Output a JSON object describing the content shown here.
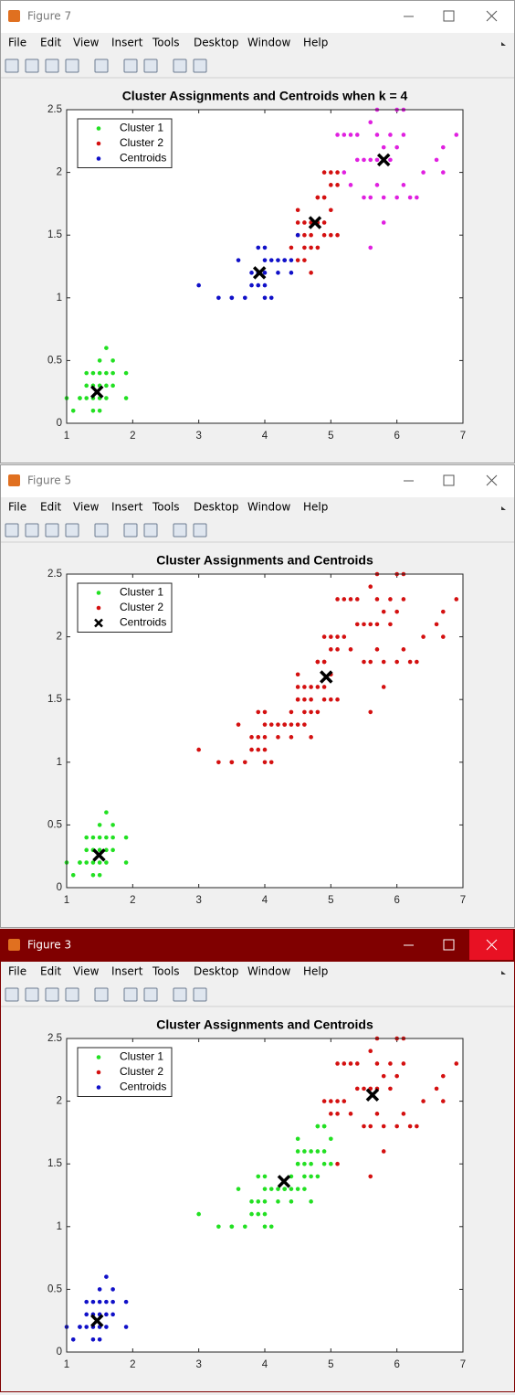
{
  "menu": [
    "File",
    "Edit",
    "View",
    "Insert",
    "Tools",
    "Desktop",
    "Window",
    "Help"
  ],
  "windows": [
    {
      "title": "Figure 7",
      "active": false
    },
    {
      "title": "Figure 5",
      "active": false
    },
    {
      "title": "Figure 3",
      "active": true
    }
  ],
  "chart_data": [
    {
      "type": "scatter",
      "title": "Cluster Assignments and Centroids when k = 4",
      "xlim": [
        1,
        7
      ],
      "ylim": [
        0,
        2.5
      ],
      "xticks": [
        1,
        2,
        3,
        4,
        5,
        6,
        7
      ],
      "yticks": [
        0,
        0.5,
        1,
        1.5,
        2,
        2.5
      ],
      "legend": "northwest",
      "series": [
        {
          "name": "Cluster 1",
          "color": "#22e022",
          "marker": "dot",
          "x": [
            1.0,
            1.1,
            1.2,
            1.3,
            1.3,
            1.3,
            1.4,
            1.4,
            1.4,
            1.5,
            1.5,
            1.5,
            1.5,
            1.6,
            1.6,
            1.6,
            1.7,
            1.7,
            1.7,
            1.9,
            1.9,
            1.2,
            1.5,
            1.6,
            1.4
          ],
          "values": [
            0.2,
            0.1,
            0.2,
            0.2,
            0.3,
            0.4,
            0.1,
            0.2,
            0.3,
            0.1,
            0.2,
            0.3,
            0.4,
            0.2,
            0.4,
            0.6,
            0.3,
            0.4,
            0.5,
            0.2,
            0.4,
            0.2,
            0.5,
            0.3,
            0.4
          ]
        },
        {
          "name": "Cluster 2",
          "color": "#d41010",
          "marker": "dot",
          "x": [
            4.4,
            4.5,
            4.6,
            4.7,
            4.8,
            4.5,
            4.6,
            4.7,
            4.8,
            4.9,
            4.5,
            4.6,
            4.7,
            4.9,
            5.0,
            5.1,
            4.8,
            4.9,
            5.0,
            5.1,
            4.7,
            4.9,
            5.0,
            4.8,
            4.9,
            5.0,
            5.1,
            4.5,
            4.6
          ],
          "values": [
            1.4,
            1.5,
            1.5,
            1.4,
            1.4,
            1.6,
            1.4,
            1.6,
            1.8,
            1.5,
            1.7,
            1.3,
            1.2,
            1.8,
            1.7,
            1.5,
            1.8,
            2.0,
            2.0,
            2.0,
            1.5,
            1.6,
            1.5,
            1.6,
            1.8,
            1.9,
            1.9,
            1.3,
            1.6
          ]
        },
        {
          "name": "Centroids",
          "color": "#1010c8",
          "marker": "dot",
          "x": [
            3.0,
            3.3,
            3.5,
            3.7,
            3.8,
            3.9,
            4.0,
            4.1,
            3.6,
            3.9,
            4.0,
            4.1,
            4.2,
            4.3,
            4.4,
            3.9,
            4.0,
            4.2,
            4.4,
            3.8,
            4.0,
            3.5,
            4.3,
            4.5,
            4.0
          ],
          "values": [
            1.1,
            1.0,
            1.0,
            1.0,
            1.1,
            1.1,
            1.0,
            1.0,
            1.3,
            1.2,
            1.2,
            1.3,
            1.3,
            1.3,
            1.2,
            1.4,
            1.4,
            1.2,
            1.3,
            1.2,
            1.3,
            1.0,
            1.3,
            1.5,
            1.1
          ]
        },
        {
          "color": "#e020e0",
          "marker": "dot",
          "x": [
            5.1,
            5.2,
            5.3,
            5.4,
            5.6,
            5.7,
            6.0,
            6.1,
            5.8,
            6.1,
            6.9,
            5.5,
            5.6,
            5.7,
            5.9,
            6.0,
            5.5,
            5.6,
            5.8,
            6.3,
            6.1,
            6.4,
            6.7,
            6.6,
            6.7,
            5.8,
            5.6,
            5.3,
            5.9,
            5.7,
            5.4,
            6.0,
            5.7,
            5.2,
            6.2
          ],
          "values": [
            2.3,
            2.3,
            2.3,
            2.3,
            2.4,
            2.5,
            2.5,
            2.5,
            2.2,
            2.3,
            2.3,
            2.1,
            2.1,
            2.1,
            2.1,
            1.8,
            1.8,
            1.8,
            1.8,
            1.8,
            1.9,
            2.0,
            2.0,
            2.1,
            2.2,
            1.6,
            1.4,
            1.9,
            2.3,
            2.3,
            2.1,
            2.2,
            1.9,
            2.0,
            1.8
          ]
        },
        {
          "color": "#000000",
          "marker": "x",
          "x": [
            1.46,
            3.92,
            4.76,
            5.8
          ],
          "values": [
            0.25,
            1.2,
            1.6,
            2.1
          ]
        }
      ]
    },
    {
      "type": "scatter",
      "title": "Cluster Assignments and Centroids",
      "xlim": [
        1,
        7
      ],
      "ylim": [
        0,
        2.5
      ],
      "xticks": [
        1,
        2,
        3,
        4,
        5,
        6,
        7
      ],
      "yticks": [
        0,
        0.5,
        1,
        1.5,
        2,
        2.5
      ],
      "legend": "northwest",
      "series": [
        {
          "name": "Cluster 1",
          "color": "#22e022",
          "marker": "dot",
          "x": [
            1.0,
            1.1,
            1.2,
            1.3,
            1.3,
            1.3,
            1.4,
            1.4,
            1.4,
            1.5,
            1.5,
            1.5,
            1.5,
            1.6,
            1.6,
            1.6,
            1.7,
            1.7,
            1.7,
            1.9,
            1.9,
            1.2,
            1.5,
            1.6,
            1.4
          ],
          "values": [
            0.2,
            0.1,
            0.2,
            0.2,
            0.3,
            0.4,
            0.1,
            0.2,
            0.3,
            0.1,
            0.2,
            0.3,
            0.4,
            0.2,
            0.4,
            0.6,
            0.3,
            0.4,
            0.5,
            0.2,
            0.4,
            0.2,
            0.5,
            0.3,
            0.4
          ]
        },
        {
          "name": "Cluster 2",
          "color": "#d41010",
          "marker": "dot",
          "x": [
            3.0,
            3.3,
            3.5,
            3.7,
            3.8,
            3.9,
            4.0,
            4.1,
            3.6,
            3.9,
            4.0,
            4.1,
            4.2,
            4.3,
            4.4,
            3.9,
            4.0,
            4.2,
            4.4,
            3.8,
            4.0,
            3.5,
            4.3,
            4.5,
            4.0,
            4.4,
            4.5,
            4.6,
            4.7,
            4.8,
            4.5,
            4.6,
            4.7,
            4.8,
            4.9,
            4.5,
            4.6,
            4.7,
            4.9,
            5.0,
            5.1,
            4.8,
            4.9,
            5.0,
            5.1,
            4.7,
            4.9,
            5.0,
            4.8,
            4.9,
            5.0,
            5.1,
            4.5,
            4.6,
            5.1,
            5.2,
            5.3,
            5.4,
            5.6,
            5.7,
            6.0,
            6.1,
            5.8,
            6.1,
            6.9,
            5.5,
            5.6,
            5.7,
            5.9,
            6.0,
            5.5,
            5.6,
            5.8,
            6.3,
            6.1,
            6.4,
            6.7,
            6.6,
            6.7,
            5.8,
            5.6,
            5.3,
            5.9,
            5.7,
            5.4,
            6.0,
            5.7,
            5.2,
            6.2
          ],
          "values": [
            1.1,
            1.0,
            1.0,
            1.0,
            1.1,
            1.1,
            1.0,
            1.0,
            1.3,
            1.2,
            1.2,
            1.3,
            1.3,
            1.3,
            1.2,
            1.4,
            1.4,
            1.2,
            1.3,
            1.2,
            1.3,
            1.0,
            1.3,
            1.5,
            1.1,
            1.4,
            1.5,
            1.5,
            1.4,
            1.4,
            1.6,
            1.4,
            1.6,
            1.8,
            1.5,
            1.7,
            1.3,
            1.2,
            1.8,
            1.7,
            1.5,
            1.8,
            2.0,
            2.0,
            2.0,
            1.5,
            1.6,
            1.5,
            1.6,
            1.8,
            1.9,
            1.9,
            1.3,
            1.6,
            2.3,
            2.3,
            2.3,
            2.3,
            2.4,
            2.5,
            2.5,
            2.5,
            2.2,
            2.3,
            2.3,
            2.1,
            2.1,
            2.1,
            2.1,
            1.8,
            1.8,
            1.8,
            1.8,
            1.8,
            1.9,
            2.0,
            2.0,
            2.1,
            2.2,
            1.6,
            1.4,
            1.9,
            2.3,
            2.3,
            2.1,
            2.2,
            1.9,
            2.0,
            1.8
          ]
        },
        {
          "name": "Centroids",
          "color": "#000000",
          "marker": "x",
          "x": [
            1.49,
            4.93
          ],
          "values": [
            0.26,
            1.68
          ]
        }
      ]
    },
    {
      "type": "scatter",
      "title": "Cluster Assignments and Centroids",
      "xlim": [
        1,
        7
      ],
      "ylim": [
        0,
        2.5
      ],
      "xticks": [
        1,
        2,
        3,
        4,
        5,
        6,
        7
      ],
      "yticks": [
        0,
        0.5,
        1,
        1.5,
        2,
        2.5
      ],
      "legend": "northwest",
      "series": [
        {
          "name": "Cluster 1",
          "color": "#22e022",
          "marker": "dot",
          "x": [
            3.0,
            3.3,
            3.5,
            3.7,
            3.8,
            3.9,
            4.0,
            4.1,
            3.6,
            3.9,
            4.0,
            4.1,
            4.2,
            4.3,
            4.4,
            3.9,
            4.0,
            4.2,
            4.4,
            3.8,
            4.0,
            3.5,
            4.3,
            4.5,
            4.0,
            4.4,
            4.5,
            4.6,
            4.7,
            4.8,
            4.5,
            4.6,
            4.7,
            4.8,
            4.9,
            4.5,
            4.6,
            4.7,
            4.9,
            5.0,
            4.8,
            4.7,
            4.9,
            5.0,
            4.8,
            4.9,
            4.5,
            4.6
          ],
          "values": [
            1.1,
            1.0,
            1.0,
            1.0,
            1.1,
            1.1,
            1.0,
            1.0,
            1.3,
            1.2,
            1.2,
            1.3,
            1.3,
            1.3,
            1.2,
            1.4,
            1.4,
            1.2,
            1.3,
            1.2,
            1.3,
            1.0,
            1.3,
            1.5,
            1.1,
            1.4,
            1.5,
            1.5,
            1.4,
            1.4,
            1.6,
            1.4,
            1.6,
            1.8,
            1.5,
            1.7,
            1.3,
            1.2,
            1.8,
            1.7,
            1.8,
            1.5,
            1.6,
            1.5,
            1.6,
            1.8,
            1.3,
            1.6
          ]
        },
        {
          "name": "Cluster 2",
          "color": "#d41010",
          "marker": "dot",
          "x": [
            5.1,
            5.2,
            5.3,
            5.4,
            5.6,
            5.7,
            6.0,
            6.1,
            5.8,
            6.1,
            6.9,
            5.5,
            5.6,
            5.7,
            5.9,
            6.0,
            5.5,
            5.6,
            5.8,
            6.3,
            6.1,
            6.4,
            6.7,
            6.6,
            6.7,
            5.8,
            5.6,
            5.3,
            5.9,
            5.7,
            5.4,
            6.0,
            5.7,
            5.2,
            6.2,
            5.1,
            4.9,
            5.0,
            5.1,
            5.0,
            5.1
          ],
          "values": [
            2.3,
            2.3,
            2.3,
            2.3,
            2.4,
            2.5,
            2.5,
            2.5,
            2.2,
            2.3,
            2.3,
            2.1,
            2.1,
            2.1,
            2.1,
            1.8,
            1.8,
            1.8,
            1.8,
            1.8,
            1.9,
            2.0,
            2.0,
            2.1,
            2.2,
            1.6,
            1.4,
            1.9,
            2.3,
            2.3,
            2.1,
            2.2,
            1.9,
            2.0,
            1.8,
            1.5,
            2.0,
            2.0,
            2.0,
            1.9,
            1.9
          ]
        },
        {
          "name": "Centroids",
          "color": "#1010c8",
          "marker": "dot",
          "x": [
            1.0,
            1.1,
            1.2,
            1.3,
            1.3,
            1.3,
            1.4,
            1.4,
            1.4,
            1.5,
            1.5,
            1.5,
            1.5,
            1.6,
            1.6,
            1.6,
            1.7,
            1.7,
            1.7,
            1.9,
            1.9,
            1.2,
            1.5,
            1.6,
            1.4
          ],
          "values": [
            0.2,
            0.1,
            0.2,
            0.2,
            0.3,
            0.4,
            0.1,
            0.2,
            0.3,
            0.1,
            0.2,
            0.3,
            0.4,
            0.2,
            0.4,
            0.6,
            0.3,
            0.4,
            0.5,
            0.2,
            0.4,
            0.2,
            0.5,
            0.3,
            0.4
          ]
        },
        {
          "color": "#000000",
          "marker": "x",
          "x": [
            1.46,
            4.29,
            5.63
          ],
          "values": [
            0.25,
            1.36,
            2.05
          ]
        }
      ]
    }
  ]
}
